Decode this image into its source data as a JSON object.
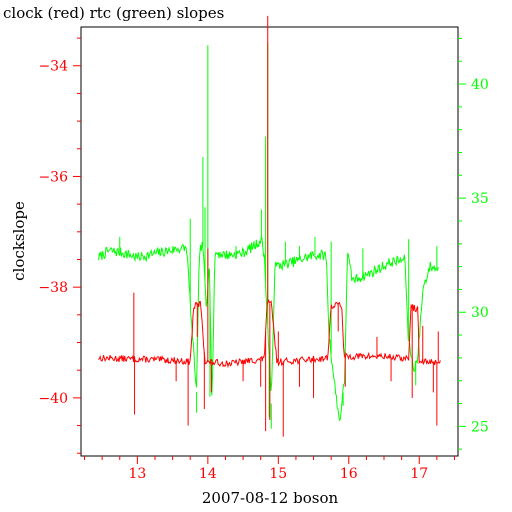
{
  "chart_data": {
    "type": "line",
    "title": "clock (red) rtc (green) slopes",
    "xlabel": "2007-08-12 boson",
    "ylabel": "clockslope",
    "x_ticks": [
      "13",
      "14",
      "15",
      "16",
      "17"
    ],
    "x_tick_values": [
      13,
      14,
      15,
      16,
      17
    ],
    "xlim": [
      12.2,
      17.55
    ],
    "y_left_ticks": [
      "−34",
      "−36",
      "−38",
      "−40"
    ],
    "y_left_tick_values": [
      -34,
      -36,
      -38,
      -40
    ],
    "ylim_left": [
      -41.05,
      -33.3
    ],
    "y_right_ticks": [
      "40",
      "35",
      "30",
      "25"
    ],
    "y_right_tick_values": [
      40,
      35,
      30,
      25
    ],
    "ylim_right": [
      23.7,
      42.5
    ],
    "colors": {
      "clock": "#ff0000",
      "rtc": "#00ff00",
      "axes": "#000000"
    },
    "series": [
      {
        "axis": "left",
        "color": "#ff0000",
        "baseline": [
          [
            12.45,
            -39.28
          ],
          [
            13.0,
            -39.3
          ],
          [
            13.5,
            -39.32
          ],
          [
            13.75,
            -39.35
          ],
          [
            13.8,
            -38.35
          ],
          [
            13.9,
            -38.3
          ],
          [
            13.96,
            -39.35
          ],
          [
            14.3,
            -39.38
          ],
          [
            14.6,
            -39.33
          ],
          [
            14.8,
            -39.3
          ],
          [
            14.84,
            -38.3
          ],
          [
            14.9,
            -38.3
          ],
          [
            14.98,
            -39.35
          ],
          [
            15.5,
            -39.3
          ],
          [
            15.7,
            -39.28
          ],
          [
            15.75,
            -38.35
          ],
          [
            15.9,
            -38.3
          ],
          [
            15.93,
            -39.25
          ],
          [
            16.5,
            -39.25
          ],
          [
            16.85,
            -39.3
          ],
          [
            16.88,
            -38.35
          ],
          [
            16.98,
            -38.4
          ],
          [
            17.0,
            -39.35
          ],
          [
            17.3,
            -39.35
          ]
        ],
        "spikes": [
          [
            12.95,
            -38.1
          ],
          [
            12.96,
            -40.3
          ],
          [
            13.55,
            -39.7
          ],
          [
            13.72,
            -40.5
          ],
          [
            13.85,
            -38.9
          ],
          [
            13.95,
            -40.2
          ],
          [
            14.0,
            -37.3
          ],
          [
            14.05,
            -39.9
          ],
          [
            14.5,
            -39.7
          ],
          [
            14.75,
            -39.8
          ],
          [
            14.82,
            -40.6
          ],
          [
            14.85,
            -33.1
          ],
          [
            14.88,
            -40.4
          ],
          [
            15.0,
            -38.8
          ],
          [
            15.07,
            -40.7
          ],
          [
            15.3,
            -39.8
          ],
          [
            15.5,
            -40.0
          ],
          [
            15.85,
            -38.8
          ],
          [
            15.95,
            -39.8
          ],
          [
            16.4,
            -38.9
          ],
          [
            16.6,
            -39.7
          ],
          [
            16.9,
            -40.0
          ],
          [
            17.05,
            -38.7
          ],
          [
            17.2,
            -39.9
          ],
          [
            17.25,
            -40.5
          ],
          [
            17.27,
            -38.8
          ]
        ]
      },
      {
        "axis": "right",
        "color": "#00ff00",
        "baseline": [
          [
            12.45,
            32.4
          ],
          [
            12.6,
            32.7
          ],
          [
            12.8,
            32.6
          ],
          [
            13.0,
            32.4
          ],
          [
            13.3,
            32.6
          ],
          [
            13.6,
            32.8
          ],
          [
            13.7,
            32.8
          ],
          [
            13.78,
            29.0
          ],
          [
            13.84,
            26.5
          ],
          [
            13.88,
            32.7
          ],
          [
            13.93,
            32.9
          ],
          [
            13.98,
            30.0
          ],
          [
            14.02,
            32.5
          ],
          [
            14.06,
            26.0
          ],
          [
            14.1,
            32.6
          ],
          [
            14.3,
            32.5
          ],
          [
            14.5,
            32.6
          ],
          [
            14.7,
            33.0
          ],
          [
            14.76,
            33.2
          ],
          [
            14.8,
            32.5
          ],
          [
            14.85,
            29.5
          ],
          [
            14.9,
            26.0
          ],
          [
            14.95,
            32.0
          ],
          [
            15.2,
            32.2
          ],
          [
            15.5,
            32.5
          ],
          [
            15.68,
            32.5
          ],
          [
            15.72,
            29.0
          ],
          [
            15.8,
            26.8
          ],
          [
            15.87,
            25.2
          ],
          [
            15.94,
            27.0
          ],
          [
            15.98,
            32.6
          ],
          [
            16.05,
            31.4
          ],
          [
            16.3,
            31.7
          ],
          [
            16.6,
            32.2
          ],
          [
            16.8,
            32.3
          ],
          [
            16.84,
            29.0
          ],
          [
            16.92,
            27.5
          ],
          [
            16.98,
            28.0
          ],
          [
            17.05,
            31.0
          ],
          [
            17.15,
            32.0
          ],
          [
            17.27,
            31.9
          ]
        ],
        "spikes": [
          [
            12.75,
            33.3
          ],
          [
            13.75,
            34.1
          ],
          [
            13.84,
            25.6
          ],
          [
            13.93,
            36.8
          ],
          [
            13.96,
            34.6
          ],
          [
            14.0,
            41.7
          ],
          [
            14.03,
            26.3
          ],
          [
            14.4,
            32.9
          ],
          [
            14.76,
            34.5
          ],
          [
            14.82,
            37.7
          ],
          [
            14.85,
            41.8
          ],
          [
            14.87,
            25.4
          ],
          [
            14.9,
            24.9
          ],
          [
            15.1,
            33.1
          ],
          [
            15.3,
            32.9
          ],
          [
            15.52,
            33.3
          ],
          [
            15.75,
            33.1
          ],
          [
            15.92,
            25.9
          ],
          [
            16.2,
            32.8
          ],
          [
            16.85,
            33.2
          ],
          [
            16.95,
            26.8
          ],
          [
            17.25,
            32.9
          ]
        ]
      }
    ]
  }
}
